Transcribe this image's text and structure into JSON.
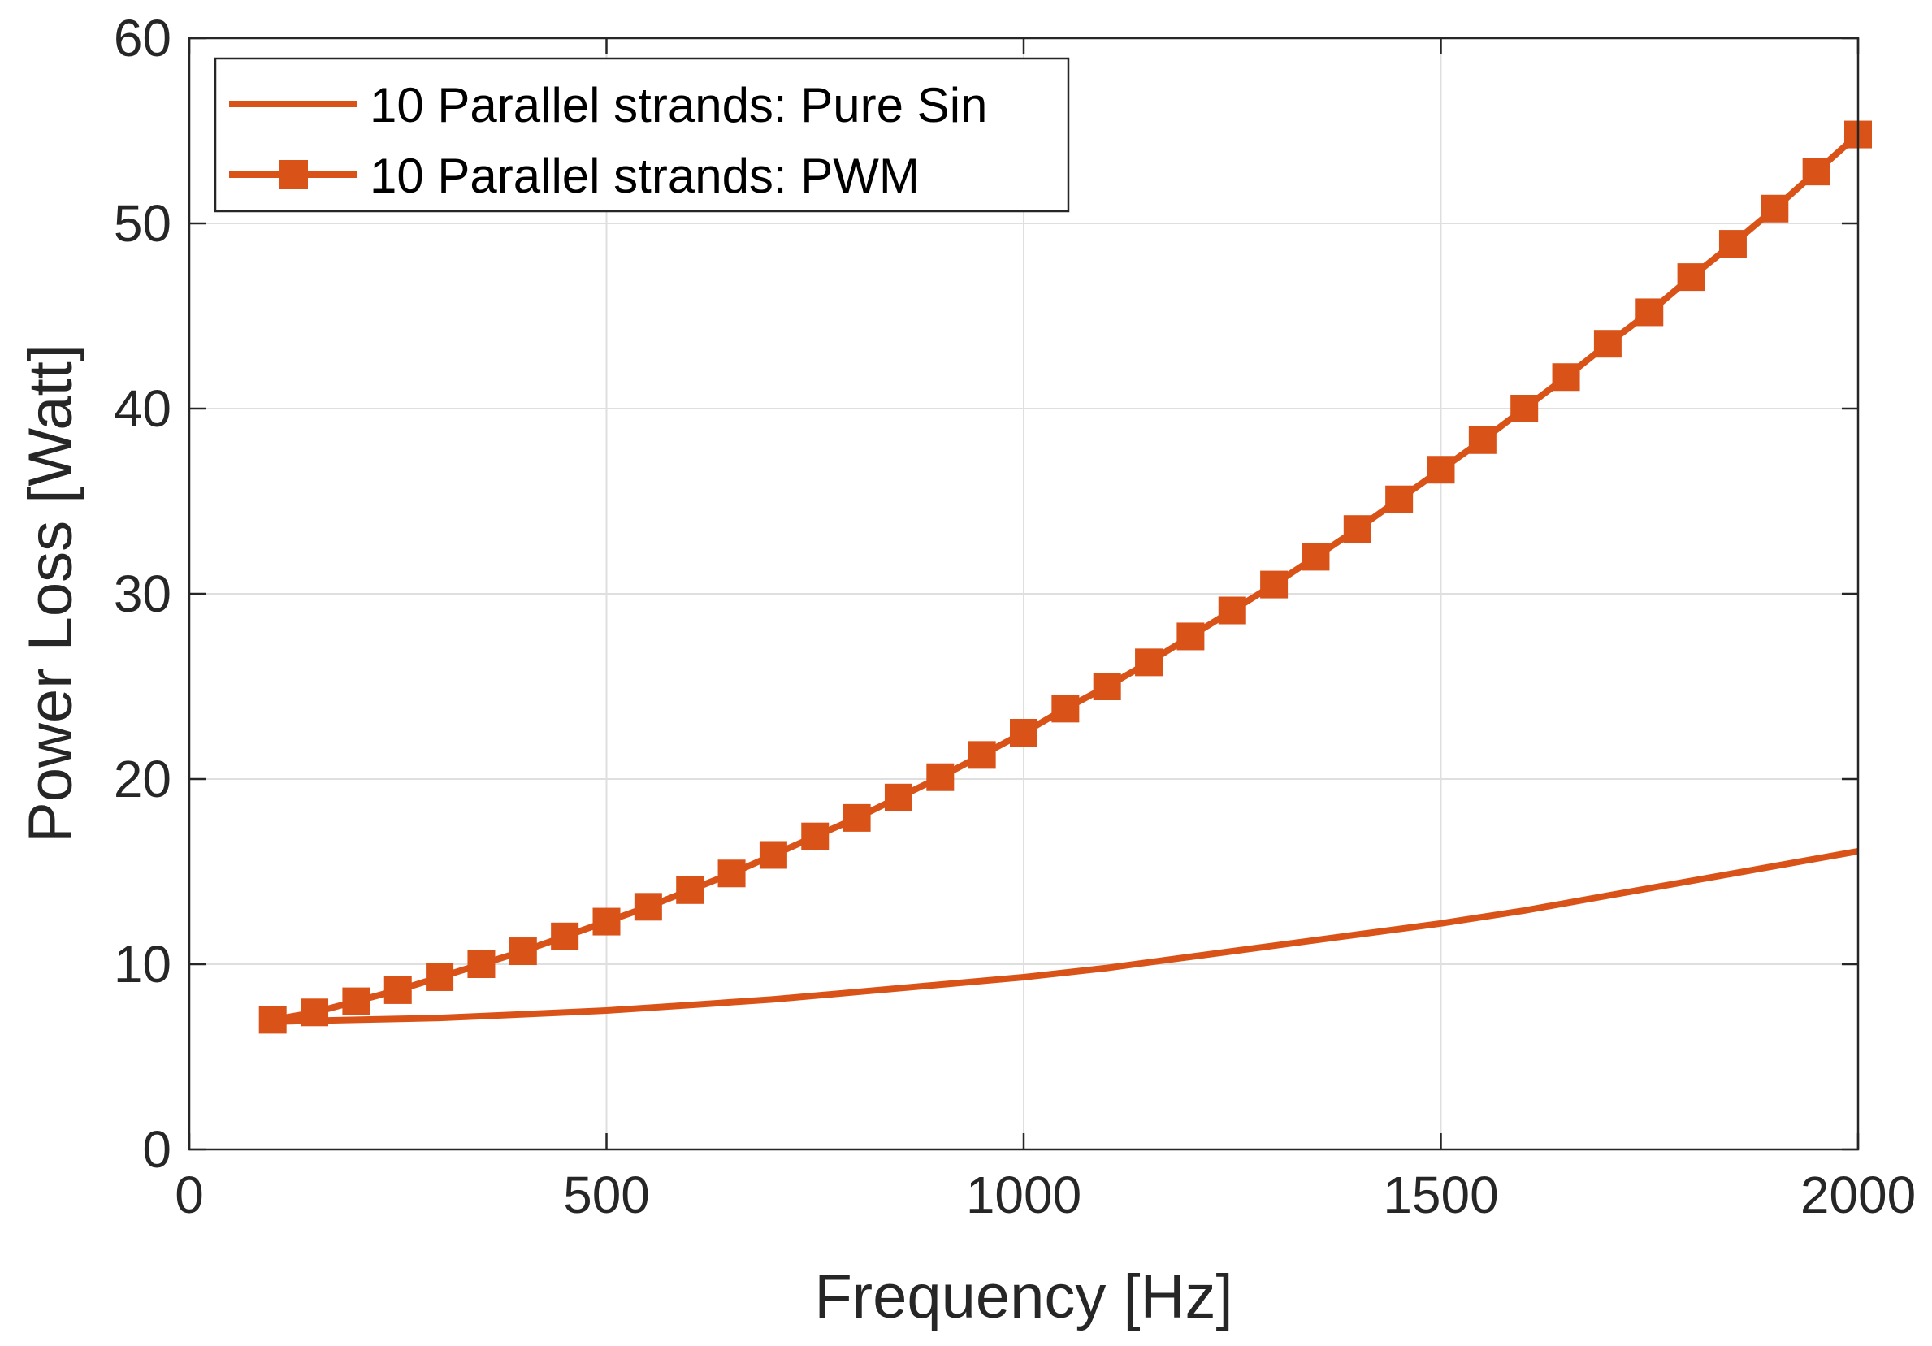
{
  "chart_data": {
    "type": "line",
    "title": "",
    "xlabel": "Frequency [Hz]",
    "ylabel": "Power Loss [Watt]",
    "xlim": [
      0,
      2000
    ],
    "ylim": [
      0,
      60
    ],
    "xticks": [
      0,
      500,
      1000,
      1500,
      2000
    ],
    "xtick_labels": [
      "0",
      "500",
      "1000",
      "1500",
      "2000"
    ],
    "yticks": [
      0,
      10,
      20,
      30,
      40,
      50,
      60
    ],
    "ytick_labels": [
      "0",
      "10",
      "20",
      "30",
      "40",
      "50",
      "60"
    ],
    "grid": true,
    "legend_position": "top-left",
    "colors": {
      "series": "#D95319",
      "axis": "#262626",
      "grid": "#DFDFDF"
    },
    "series": [
      {
        "name": "10 Parallel strands: Pure Sin",
        "marker": "none",
        "x": [
          100,
          200,
          300,
          400,
          500,
          600,
          700,
          800,
          900,
          1000,
          1100,
          1200,
          1300,
          1400,
          1500,
          1600,
          1700,
          1800,
          1900,
          2000
        ],
        "y": [
          6.9,
          7.0,
          7.1,
          7.3,
          7.5,
          7.8,
          8.1,
          8.5,
          8.9,
          9.3,
          9.8,
          10.4,
          11.0,
          11.6,
          12.2,
          12.9,
          13.7,
          14.5,
          15.3,
          16.1
        ]
      },
      {
        "name": "10 Parallel strands: PWM",
        "marker": "square",
        "x": [
          100,
          150,
          200,
          250,
          300,
          350,
          400,
          450,
          500,
          550,
          600,
          650,
          700,
          750,
          800,
          850,
          900,
          950,
          1000,
          1050,
          1100,
          1150,
          1200,
          1250,
          1300,
          1350,
          1400,
          1450,
          1500,
          1550,
          1600,
          1650,
          1700,
          1750,
          1800,
          1850,
          1900,
          1950,
          2000
        ],
        "y": [
          7.0,
          7.4,
          8.0,
          8.6,
          9.3,
          10.0,
          10.7,
          11.5,
          12.3,
          13.1,
          14.0,
          14.9,
          15.9,
          16.9,
          17.9,
          19.0,
          20.1,
          21.3,
          22.5,
          23.8,
          25.0,
          26.3,
          27.7,
          29.1,
          30.5,
          32.0,
          33.5,
          35.1,
          36.7,
          38.3,
          40.0,
          41.7,
          43.5,
          45.2,
          47.1,
          48.9,
          50.8,
          52.8,
          54.8
        ]
      }
    ]
  }
}
